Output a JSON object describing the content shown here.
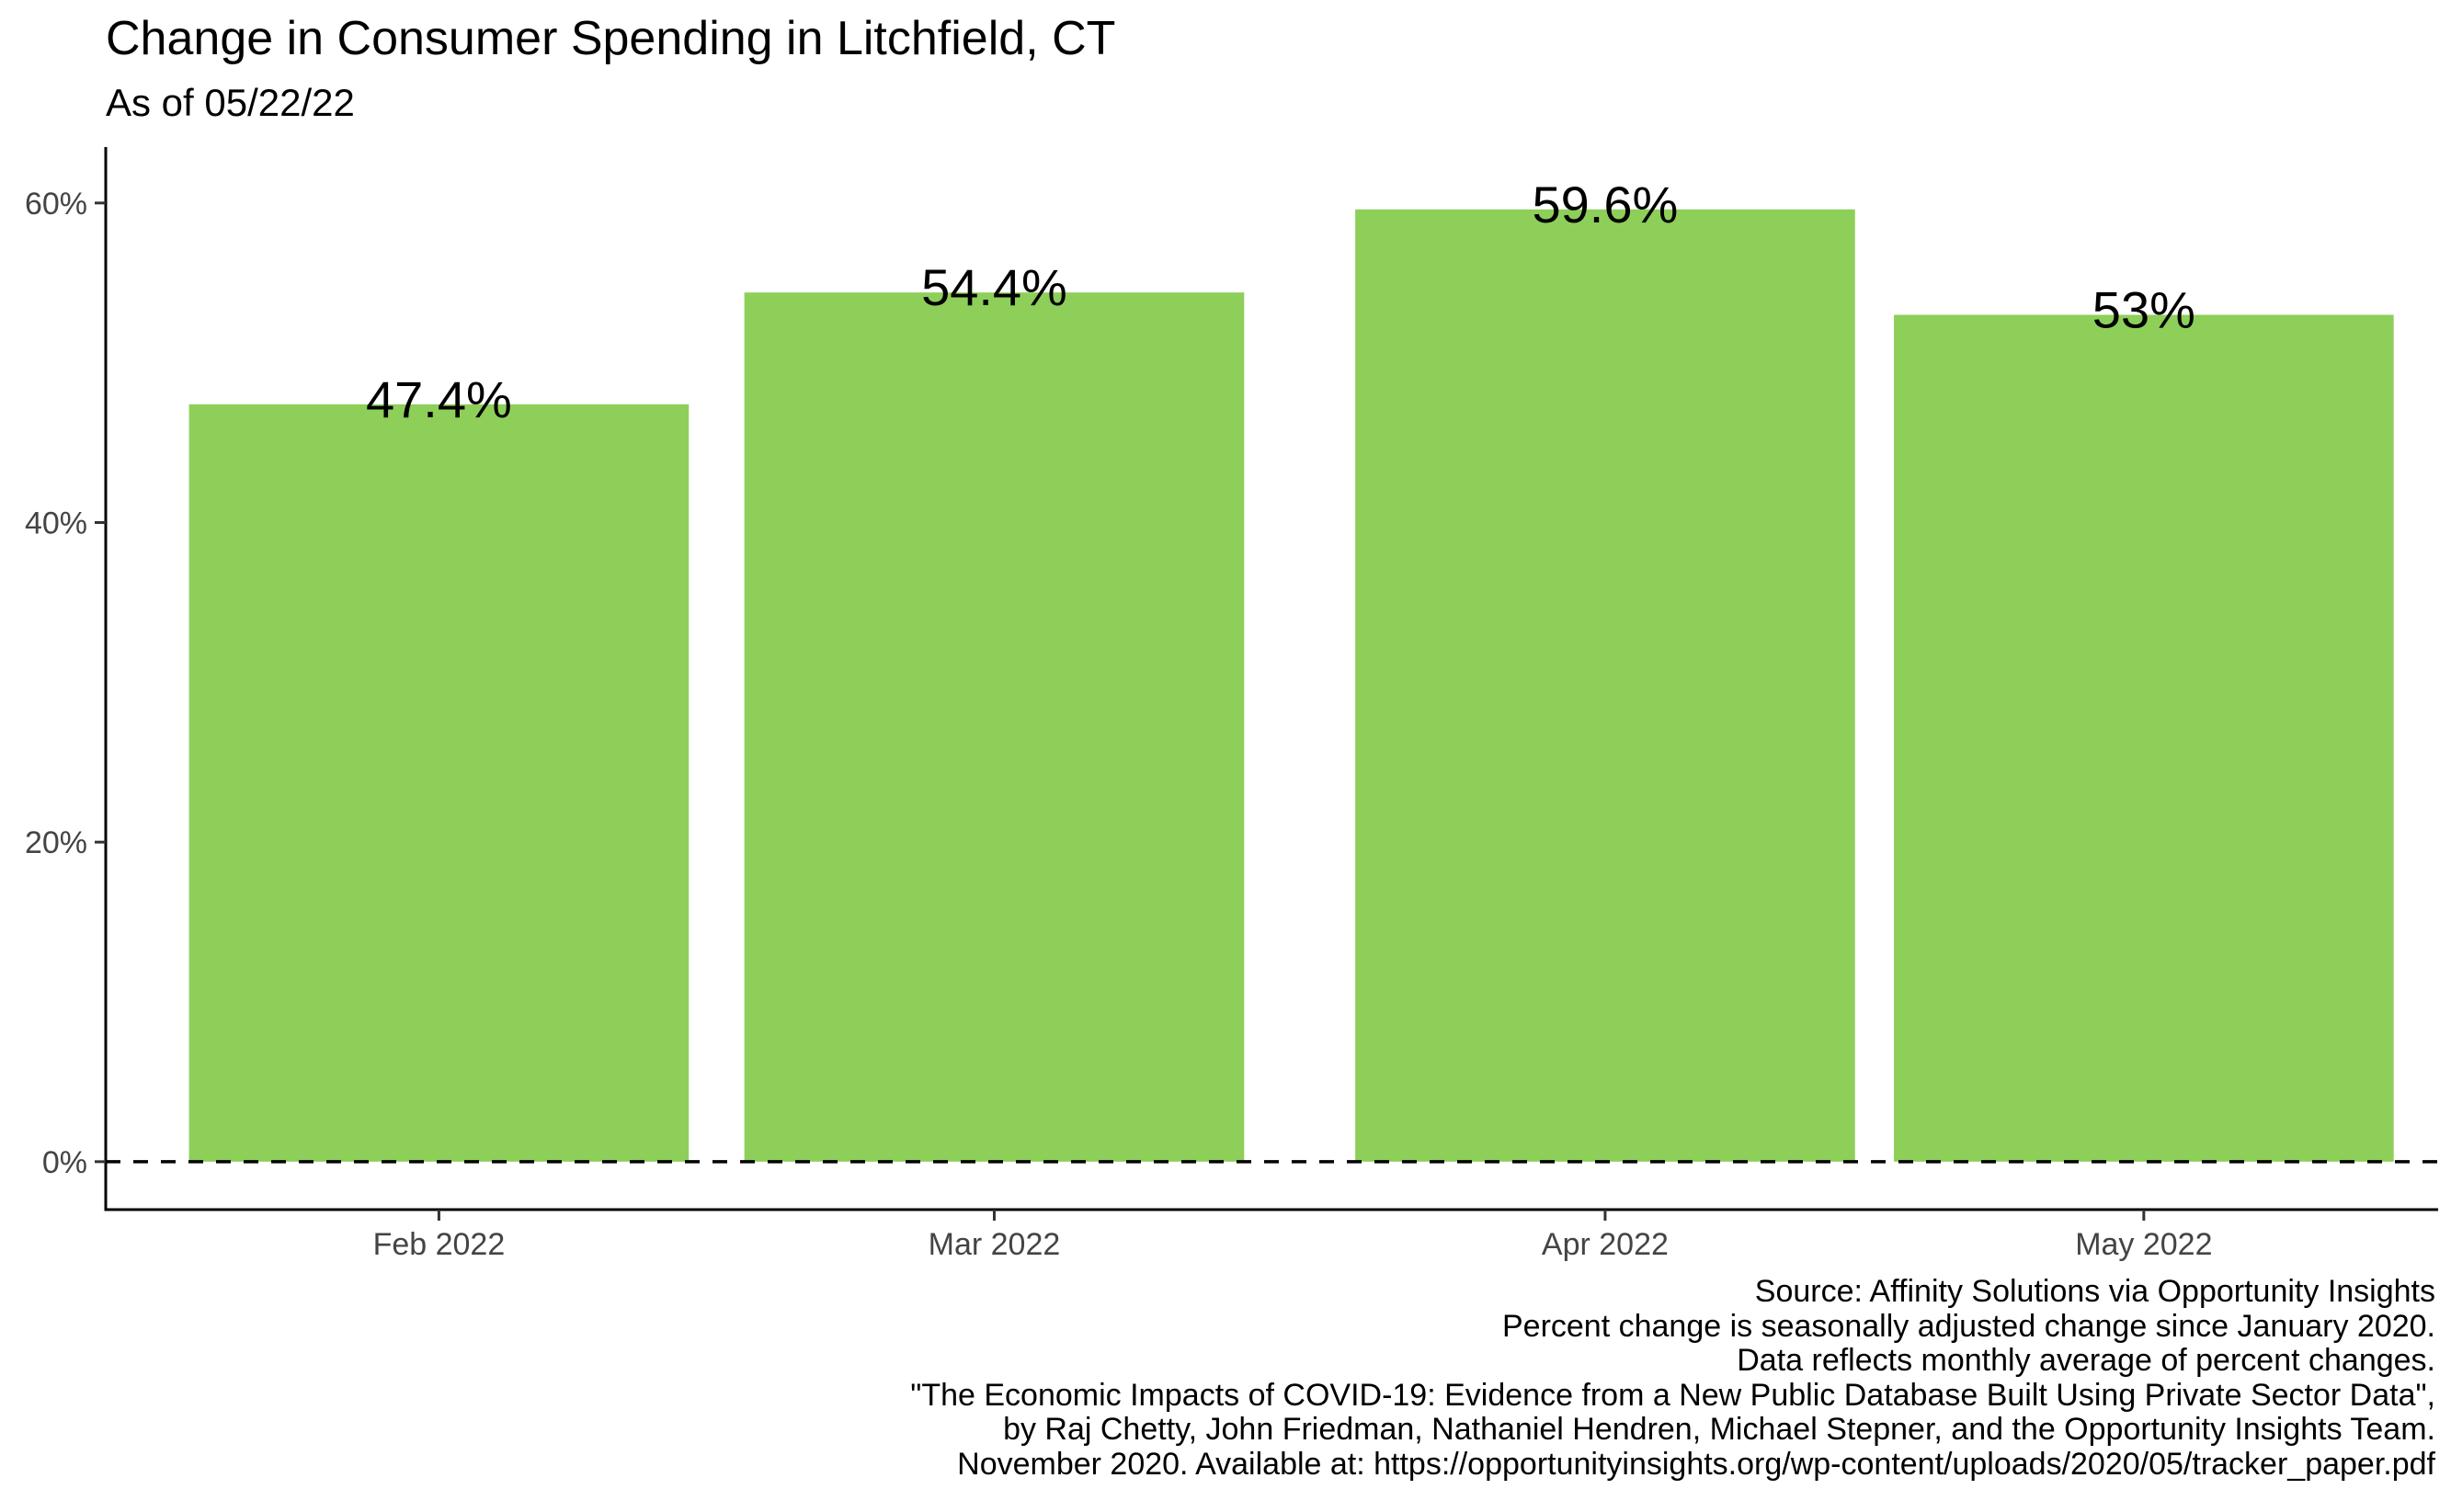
{
  "chart_data": {
    "type": "bar",
    "title": "Change in Consumer Spending in Litchfield, CT",
    "subtitle": "As of 05/22/22",
    "categories": [
      "Feb 2022",
      "Mar 2022",
      "Apr 2022",
      "May 2022"
    ],
    "values": [
      47.4,
      54.4,
      59.6,
      53.0
    ],
    "data_labels": [
      "47.4%",
      "54.4%",
      "59.6%",
      "53%"
    ],
    "x_positions": [
      1,
      2,
      3.1,
      4.07
    ],
    "xlabel": "",
    "ylabel": "",
    "ylim": [
      -3,
      63.5
    ],
    "yticks": [
      0,
      20,
      40,
      60
    ],
    "ytick_labels": [
      "0%",
      "20%",
      "40%",
      "60%"
    ],
    "reference_line": {
      "y": 0,
      "style": "dashed"
    },
    "bar_color": "#8ecf5a",
    "grid": false,
    "legend": "none",
    "caption": [
      "Source: Affinity Solutions via Opportunity Insights",
      "Percent change is seasonally adjusted change since January 2020.",
      "Data reflects monthly average of percent changes.",
      "\"The Economic Impacts of COVID-19: Evidence from a New Public Database Built Using Private Sector Data\",",
      "by Raj Chetty, John Friedman, Nathaniel Hendren, Michael Stepner, and the Opportunity Insights Team.",
      "November 2020. Available at: https://opportunityinsights.org/wp-content/uploads/2020/05/tracker_paper.pdf"
    ]
  }
}
